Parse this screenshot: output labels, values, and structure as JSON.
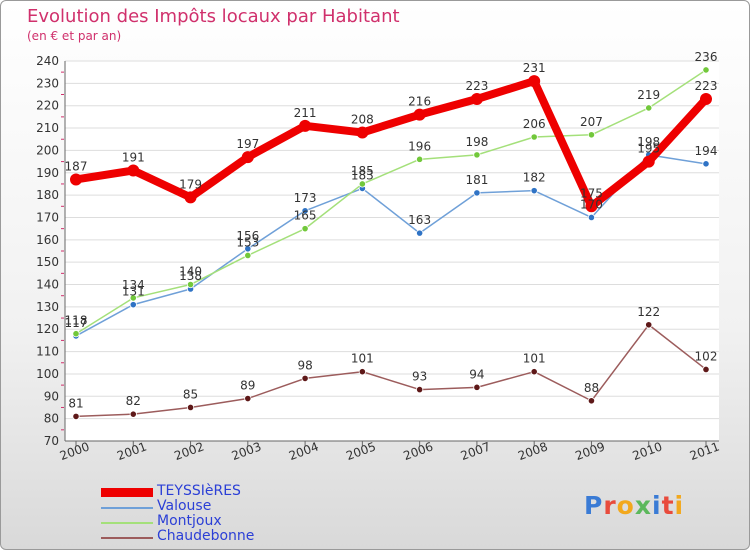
{
  "title": "Evolution des Impôts locaux par Habitant",
  "subtitle": "(en € et par an)",
  "logo": {
    "text": "Proxiti",
    "colors": [
      "#3a7bd5",
      "#e84b3c",
      "#f2a81d",
      "#5cb85c",
      "#3a7bd5",
      "#e84b3c",
      "#f2a81d"
    ]
  },
  "chart_data": {
    "type": "line",
    "title": "Evolution des Impôts locaux par Habitant",
    "subtitle": "(en € et par an)",
    "xlabel": "",
    "ylabel": "",
    "categories": [
      "2000",
      "2001",
      "2002",
      "2003",
      "2004",
      "2005",
      "2006",
      "2007",
      "2008",
      "2009",
      "2010",
      "2011"
    ],
    "ylim": [
      70,
      240
    ],
    "yticks": [
      70,
      80,
      90,
      100,
      110,
      120,
      130,
      140,
      150,
      160,
      170,
      180,
      190,
      200,
      210,
      220,
      230,
      240
    ],
    "grid": "horizontal",
    "legend_position": "bottom-left",
    "series": [
      {
        "name": "Valouse",
        "color": "#6fa0d8",
        "marker_color": "#2f73c5",
        "values": [
          117,
          131,
          138,
          156,
          173,
          183,
          163,
          181,
          182,
          170,
          198,
          194
        ]
      },
      {
        "name": "Montjoux",
        "color": "#a4e07a",
        "marker_color": "#72c83b",
        "values": [
          118,
          134,
          140,
          153,
          165,
          185,
          196,
          198,
          206,
          207,
          219,
          236
        ]
      },
      {
        "name": "Chaudebonne",
        "color": "#9c5c5c",
        "marker_color": "#5e1818",
        "values": [
          81,
          82,
          85,
          89,
          98,
          101,
          93,
          94,
          101,
          88,
          122,
          102
        ]
      },
      {
        "name": "TEYSSIèRES",
        "color": "#ee0000",
        "marker_color": "#ee0000",
        "values": [
          187,
          191,
          179,
          197,
          211,
          208,
          216,
          223,
          231,
          175,
          195,
          223
        ]
      }
    ],
    "legend": [
      "TEYSSIèRES",
      "Valouse",
      "Montjoux",
      "Chaudebonne"
    ]
  }
}
